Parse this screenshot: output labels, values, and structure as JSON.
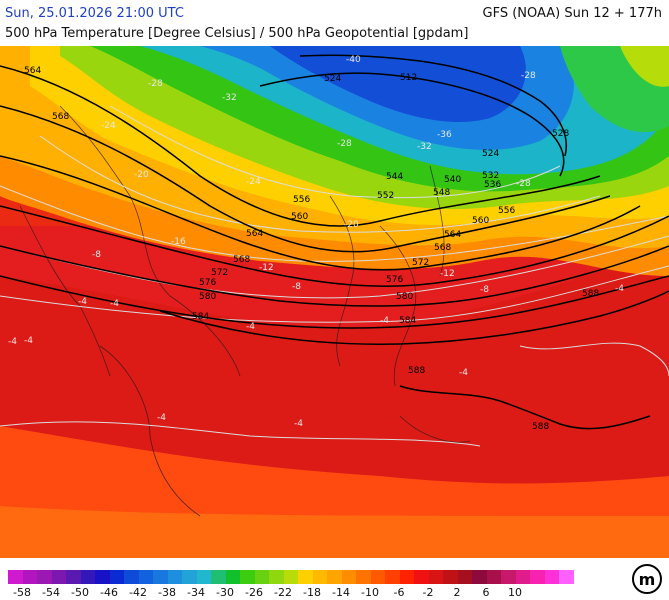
{
  "header": {
    "valid_time": "Sun, 25.01.2026 21:00 UTC",
    "model_run": "GFS (NOAA) Sun 12 + 177h",
    "subtitle": "500 hPa Temperature [Degree Celsius] / 500 hPa Geopotential [gpdam]"
  },
  "map": {
    "geopotential_labels": [
      "564",
      "568",
      "524",
      "512",
      "528",
      "524",
      "532",
      "536",
      "544",
      "540",
      "548",
      "552",
      "556",
      "560",
      "556",
      "560",
      "564",
      "564",
      "568",
      "568",
      "572",
      "572",
      "576",
      "576",
      "580",
      "580",
      "584",
      "584",
      "588",
      "588",
      "588"
    ],
    "temperature_labels": [
      "-40",
      "-36",
      "-32",
      "-32",
      "-28",
      "-28",
      "-28",
      "-28",
      "-24",
      "-24",
      "-20",
      "-20",
      "-16",
      "-12",
      "-12",
      "-8",
      "-8",
      "-8",
      "-4",
      "-4",
      "-4",
      "-4",
      "-4",
      "-4",
      "-4",
      "-4",
      "-4",
      "-4"
    ],
    "land_color": "#e41e1e",
    "contour_color": "#000000",
    "isotherm_color": "#d9d9d9"
  },
  "colorbar": {
    "colors": [
      "#d01ad0",
      "#b214c0",
      "#9b18b5",
      "#7c18b0",
      "#5a19b0",
      "#3417b8",
      "#1712c6",
      "#0a2bd4",
      "#0f4ad9",
      "#1261de",
      "#1978e0",
      "#1e8ede",
      "#22a3d8",
      "#21b8cf",
      "#1fbe70",
      "#12c02b",
      "#3ccc10",
      "#68d210",
      "#90d80e",
      "#b8dc0a",
      "#ffd000",
      "#ffba00",
      "#ffa400",
      "#ff8d00",
      "#ff7300",
      "#ff5a00",
      "#ff4000",
      "#ff2200",
      "#f01212",
      "#d81414",
      "#c01216",
      "#a6101e",
      "#8e0a3c",
      "#a8104c",
      "#c8186c",
      "#e01c8c",
      "#f822b0",
      "#ff30d8",
      "#ff60ff"
    ],
    "labels": [
      "-58",
      "-54",
      "-50",
      "-46",
      "-42",
      "-38",
      "-34",
      "-30",
      "-26",
      "-22",
      "-18",
      "-14",
      "-10",
      "-6",
      "-2",
      "2",
      "6",
      "10"
    ]
  },
  "logo": {
    "text": "m",
    "icon": "meteologix-logo"
  }
}
